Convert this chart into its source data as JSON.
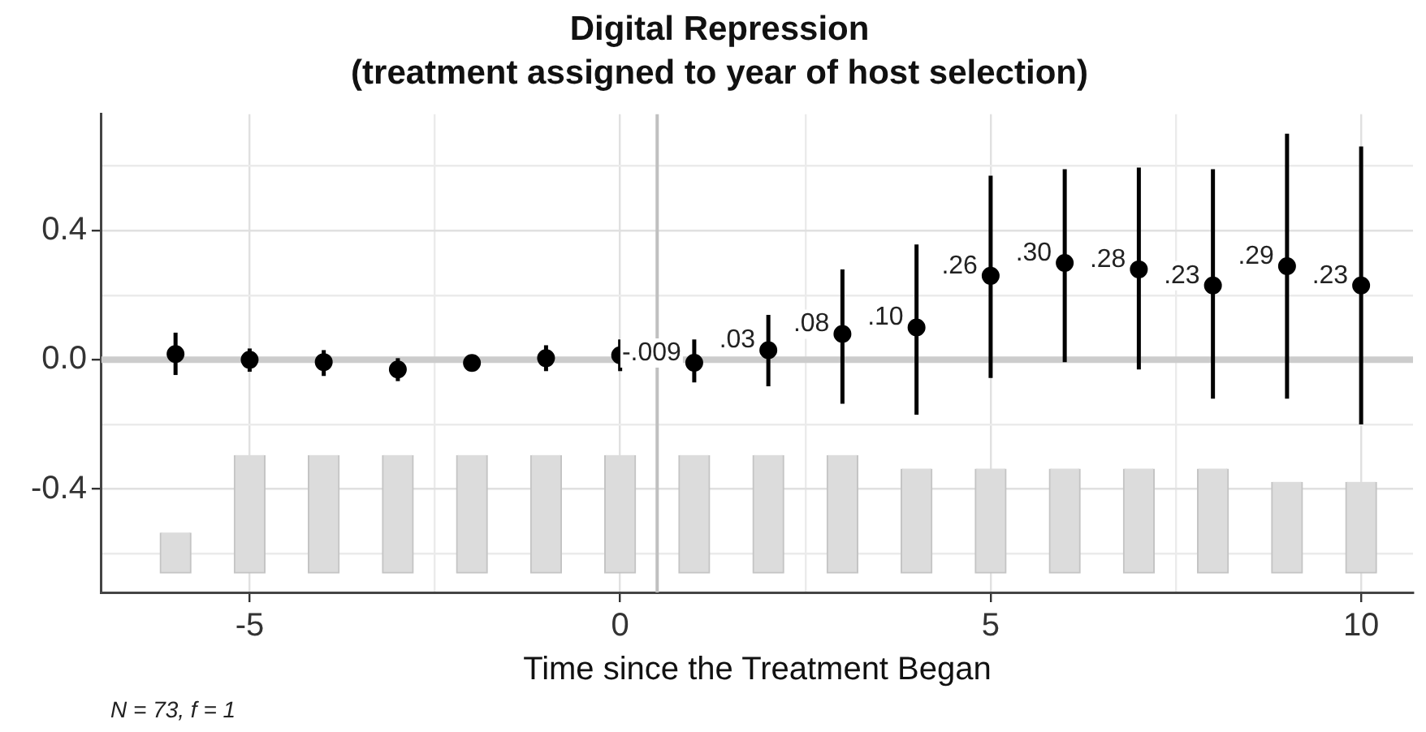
{
  "chart_data": {
    "type": "scatter",
    "title": "Digital Repression",
    "subtitle": "(treatment assigned to year of host selection)",
    "xlabel": "Time since the Treatment Began",
    "annotations": [
      "N = 73, f = 1"
    ],
    "x": [
      -6,
      -5,
      -4,
      -3,
      -2,
      -1,
      0,
      1,
      2,
      3,
      4,
      5,
      6,
      7,
      8,
      9,
      10
    ],
    "series": [
      {
        "type": "bar",
        "color": "#dcdcdc",
        "base": [
          -0.66,
          -0.66,
          -0.66,
          -0.66,
          -0.66,
          -0.66,
          -0.66,
          -0.66,
          -0.66,
          -0.66,
          -0.66,
          -0.66,
          -0.66,
          -0.66,
          -0.66,
          -0.66,
          -0.66
        ],
        "values": [
          0.125,
          0.365,
          0.365,
          0.365,
          0.365,
          0.365,
          0.365,
          0.365,
          0.365,
          0.365,
          0.323,
          0.323,
          0.323,
          0.323,
          0.323,
          0.282,
          0.282
        ]
      },
      {
        "color": "#000000",
        "values": [
          0.018,
          0.0,
          -0.007,
          -0.03,
          -0.01,
          0.005,
          0.014,
          -0.009,
          0.03,
          0.08,
          0.1,
          0.26,
          0.3,
          0.28,
          0.23,
          0.29,
          0.23
        ],
        "errors": [
          [
            -0.047,
            0.084
          ],
          [
            -0.037,
            0.035
          ],
          [
            -0.05,
            0.03
          ],
          [
            -0.066,
            0.005
          ],
          null,
          [
            -0.035,
            0.045
          ],
          [
            -0.035,
            0.063
          ],
          [
            -0.07,
            0.063
          ],
          [
            -0.082,
            0.139
          ],
          [
            -0.136,
            0.28
          ],
          [
            -0.17,
            0.357
          ],
          [
            -0.056,
            0.57
          ],
          [
            -0.007,
            0.59
          ],
          [
            -0.03,
            0.595
          ],
          [
            -0.12,
            0.59
          ],
          [
            -0.12,
            0.7
          ],
          [
            -0.2,
            0.66
          ]
        ],
        "value_labels": [
          null,
          null,
          null,
          null,
          null,
          null,
          null,
          "-.009",
          ".03",
          ".08",
          ".10",
          ".26",
          ".30",
          ".28",
          ".23",
          ".29",
          ".23"
        ]
      }
    ],
    "xlim": [
      -7.0,
      10.7
    ],
    "xticks": [
      -5,
      {
        "value": -2.5,
        "label": null
      },
      0,
      {
        "value": 2.5,
        "label": null
      },
      5,
      {
        "value": 7.5,
        "label": null
      },
      10
    ],
    "ylim": [
      -0.72,
      0.76
    ],
    "yticks": [
      {
        "value": -0.6,
        "label": null
      },
      -0.4,
      {
        "value": -0.2,
        "label": null
      },
      {
        "value": 0,
        "label": "0.0"
      },
      {
        "value": 0.2,
        "label": null
      },
      0.4,
      {
        "value": 0.6,
        "label": null
      }
    ],
    "ref_lines": [
      {
        "axis": "y",
        "value": 0,
        "color": "#cccccc"
      },
      {
        "axis": "x",
        "value": 0.5,
        "color": "#c0c0c0"
      }
    ],
    "grid": true,
    "legend": false,
    "marker": "circle"
  }
}
